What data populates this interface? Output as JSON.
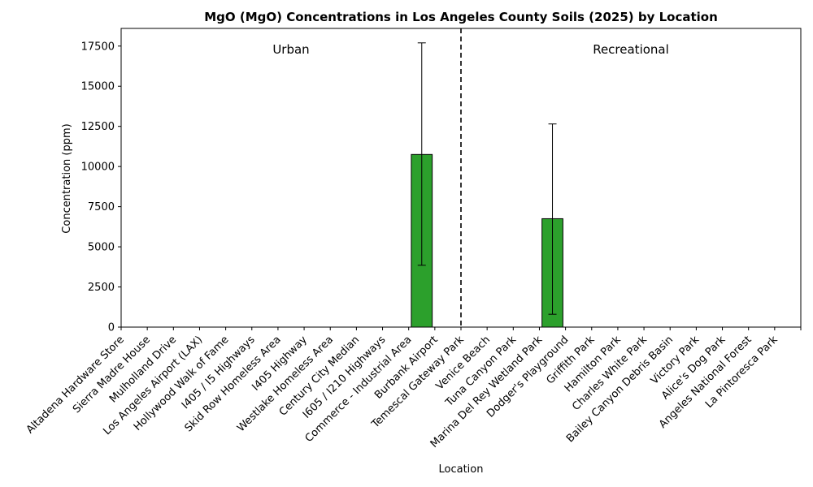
{
  "chart_data": {
    "type": "bar",
    "title": "MgO (MgO) Concentrations in Los Angeles County Soils (2025) by Location",
    "xlabel": "Location",
    "ylabel": "Concentration (ppm)",
    "ylim": [
      0,
      18600
    ],
    "yticks": [
      0,
      2500,
      5000,
      7500,
      10000,
      12500,
      15000,
      17500
    ],
    "bar_color": "#2ca02c",
    "grid": false,
    "categories": [
      "Altadena Hardware Store",
      "Sierra Madre House",
      "Mulholland Drive",
      "Los Angeles Airport (LAX)",
      "Hollywood Walk of Fame",
      "I405 / I5 Highways",
      "Skid Row Homeless Area",
      "I405 Highway",
      "Westlake Homeless Area",
      "Century City Median",
      "I605 / I210 Highways",
      "Commerce - Industrial Area",
      "Burbank Airport",
      "Temescal Gateway Park",
      "Venice Beach",
      "Tuna Canyon Park",
      "Marina Del Rey Wetland Park",
      "Dodger's Playground",
      "Griffith Park",
      "Hamilton Park",
      "Charles White Park",
      "Bailey Canyon Debris Basin",
      "Victory Park",
      "Alice's Dog Park",
      "Angeles National Forest",
      "La Pintoresca Park"
    ],
    "values": [
      0,
      0,
      0,
      0,
      0,
      0,
      0,
      0,
      0,
      0,
      0,
      10750,
      0,
      0,
      0,
      0,
      6750,
      0,
      0,
      0,
      0,
      0,
      0,
      0,
      0,
      0
    ],
    "error_low": [
      null,
      null,
      null,
      null,
      null,
      null,
      null,
      null,
      null,
      null,
      null,
      3850,
      null,
      null,
      null,
      null,
      800,
      null,
      null,
      null,
      null,
      null,
      null,
      null,
      null,
      null
    ],
    "error_high": [
      null,
      null,
      null,
      null,
      null,
      null,
      null,
      null,
      null,
      null,
      null,
      17700,
      null,
      null,
      null,
      null,
      12650,
      null,
      null,
      null,
      null,
      null,
      null,
      null,
      null,
      null
    ],
    "groups": [
      {
        "label": "Urban",
        "start": 0,
        "end": 12
      },
      {
        "label": "Recreational",
        "start": 13,
        "end": 25
      }
    ]
  }
}
